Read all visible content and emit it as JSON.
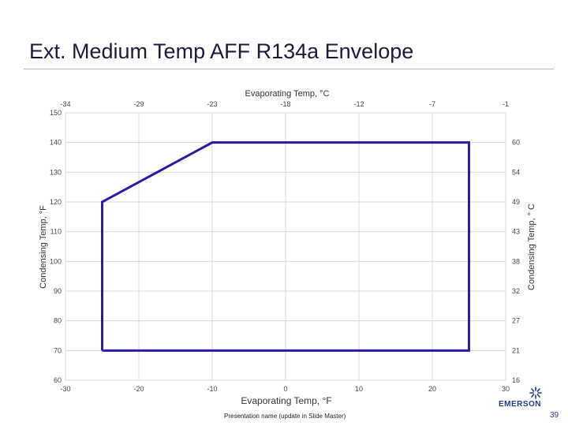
{
  "slide": {
    "title": "Ext. Medium Temp AFF R134a Envelope",
    "footer": "Presentation name (update in Slide Master)",
    "page_number": "39",
    "logo_text": "EMERSON",
    "logo_icon": "emerson-logo-icon"
  },
  "chart_data": {
    "type": "line",
    "title": "",
    "xlabel": "Evaporating Temp, °F",
    "ylabel": "Condensing Temp, °F",
    "x2label": "Evaporating Temp, °C",
    "y2label": "Condensing Temp, ° C",
    "xlim": [
      -30,
      30
    ],
    "ylim": [
      60,
      150
    ],
    "x_ticks": [
      -30,
      -20,
      -10,
      0,
      10,
      20,
      30
    ],
    "y_ticks": [
      60,
      70,
      80,
      90,
      100,
      110,
      120,
      130,
      140,
      150
    ],
    "x2_ticks": [
      {
        "label": "-34",
        "at": -30
      },
      {
        "label": "-29",
        "at": -20
      },
      {
        "label": "-23",
        "at": -10
      },
      {
        "label": "-18",
        "at": 0
      },
      {
        "label": "-12",
        "at": 10
      },
      {
        "label": "-7",
        "at": 20
      },
      {
        "label": "-1",
        "at": 30
      }
    ],
    "y2_ticks": [
      {
        "label": "16",
        "at": 60
      },
      {
        "label": "21",
        "at": 70
      },
      {
        "label": "27",
        "at": 80
      },
      {
        "label": "32",
        "at": 90
      },
      {
        "label": "38",
        "at": 100
      },
      {
        "label": "43",
        "at": 110
      },
      {
        "label": "49",
        "at": 120
      },
      {
        "label": "54",
        "at": 130
      },
      {
        "label": "60",
        "at": 140
      }
    ],
    "grid": true,
    "series": [
      {
        "x": [
          -25,
          -25,
          -10,
          25,
          25,
          -25
        ],
        "y": [
          70,
          120,
          140,
          140,
          70,
          70
        ],
        "color": "#2a1aa8"
      }
    ]
  }
}
